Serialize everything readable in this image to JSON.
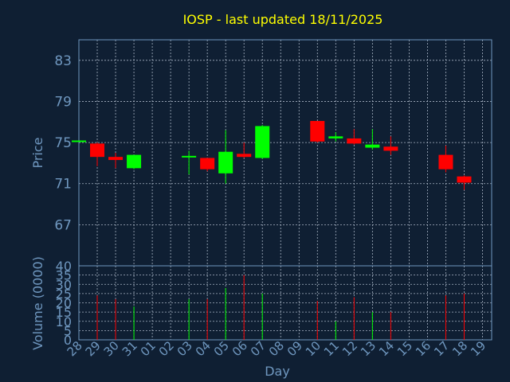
{
  "title": "IOSP - last updated 18/11/2025",
  "colors": {
    "background": "#0f1f33",
    "panel_border": "#6f97bf",
    "grid": "#a8b4c4",
    "up": "#00ff00",
    "down": "#ff0000",
    "title": "#ffff00",
    "labels": "#6f97bf"
  },
  "chart_data": [
    {
      "type": "candlestick",
      "title": "IOSP - last updated 18/11/2025",
      "ylabel": "Price",
      "xlabel": "Day",
      "ylim": [
        63,
        85
      ],
      "yticks": [
        "83",
        "79",
        "75",
        "71",
        "67"
      ],
      "grid": true,
      "x_ticks": [
        "28",
        "29",
        "30",
        "31",
        "01",
        "02",
        "03",
        "04",
        "05",
        "06",
        "07",
        "08",
        "09",
        "10",
        "11",
        "12",
        "13",
        "14",
        "15",
        "16",
        "17",
        "18",
        "19"
      ],
      "candles": [
        {
          "day": "28",
          "open": 75.1,
          "close": 75.2,
          "high": 75.2,
          "low": 75.1
        },
        {
          "day": "29",
          "open": 74.9,
          "close": 73.6,
          "high": 75.0,
          "low": 72.7
        },
        {
          "day": "30",
          "open": 73.6,
          "close": 73.3,
          "high": 74.0,
          "low": 72.5
        },
        {
          "day": "31",
          "open": 72.5,
          "close": 73.8,
          "high": 73.8,
          "low": 72.4
        },
        {
          "day": "03",
          "open": 73.6,
          "close": 73.7,
          "high": 74.2,
          "low": 71.9
        },
        {
          "day": "04",
          "open": 73.5,
          "close": 72.4,
          "high": 73.5,
          "low": 72.2
        },
        {
          "day": "05",
          "open": 72.0,
          "close": 74.1,
          "high": 76.2,
          "low": 71.0
        },
        {
          "day": "06",
          "open": 73.9,
          "close": 73.6,
          "high": 75.0,
          "low": 73.5
        },
        {
          "day": "07",
          "open": 73.5,
          "close": 76.6,
          "high": 76.7,
          "low": 73.4
        },
        {
          "day": "10",
          "open": 77.1,
          "close": 75.1,
          "high": 77.1,
          "low": 75.0
        },
        {
          "day": "11",
          "open": 75.4,
          "close": 75.6,
          "high": 76.0,
          "low": 75.1
        },
        {
          "day": "12",
          "open": 75.4,
          "close": 74.9,
          "high": 76.3,
          "low": 74.8
        },
        {
          "day": "13",
          "open": 74.5,
          "close": 74.8,
          "high": 76.3,
          "low": 74.3
        },
        {
          "day": "14",
          "open": 74.6,
          "close": 74.2,
          "high": 75.6,
          "low": 73.8
        },
        {
          "day": "17",
          "open": 73.8,
          "close": 72.4,
          "high": 74.7,
          "low": 72.1
        },
        {
          "day": "18",
          "open": 71.7,
          "close": 71.1,
          "high": 71.8,
          "low": 70.4
        }
      ]
    },
    {
      "type": "bar",
      "ylabel": "Volume (0000)",
      "xlabel": "Day",
      "ylim": [
        0,
        40
      ],
      "yticks": [
        "40",
        "35",
        "30",
        "25",
        "20",
        "15",
        "10",
        "5",
        "0"
      ],
      "grid": true,
      "bars": [
        {
          "day": "29",
          "value": 24,
          "direction": "down"
        },
        {
          "day": "30",
          "value": 22,
          "direction": "down"
        },
        {
          "day": "31",
          "value": 18,
          "direction": "up"
        },
        {
          "day": "03",
          "value": 22,
          "direction": "up"
        },
        {
          "day": "04",
          "value": 22,
          "direction": "down"
        },
        {
          "day": "05",
          "value": 28,
          "direction": "up"
        },
        {
          "day": "06",
          "value": 35,
          "direction": "down"
        },
        {
          "day": "07",
          "value": 25,
          "direction": "up"
        },
        {
          "day": "10",
          "value": 21,
          "direction": "down"
        },
        {
          "day": "11",
          "value": 10,
          "direction": "up"
        },
        {
          "day": "12",
          "value": 23,
          "direction": "down"
        },
        {
          "day": "13",
          "value": 15,
          "direction": "up"
        },
        {
          "day": "14",
          "value": 15,
          "direction": "down"
        },
        {
          "day": "17",
          "value": 24,
          "direction": "down"
        },
        {
          "day": "18",
          "value": 25,
          "direction": "down"
        }
      ]
    }
  ]
}
